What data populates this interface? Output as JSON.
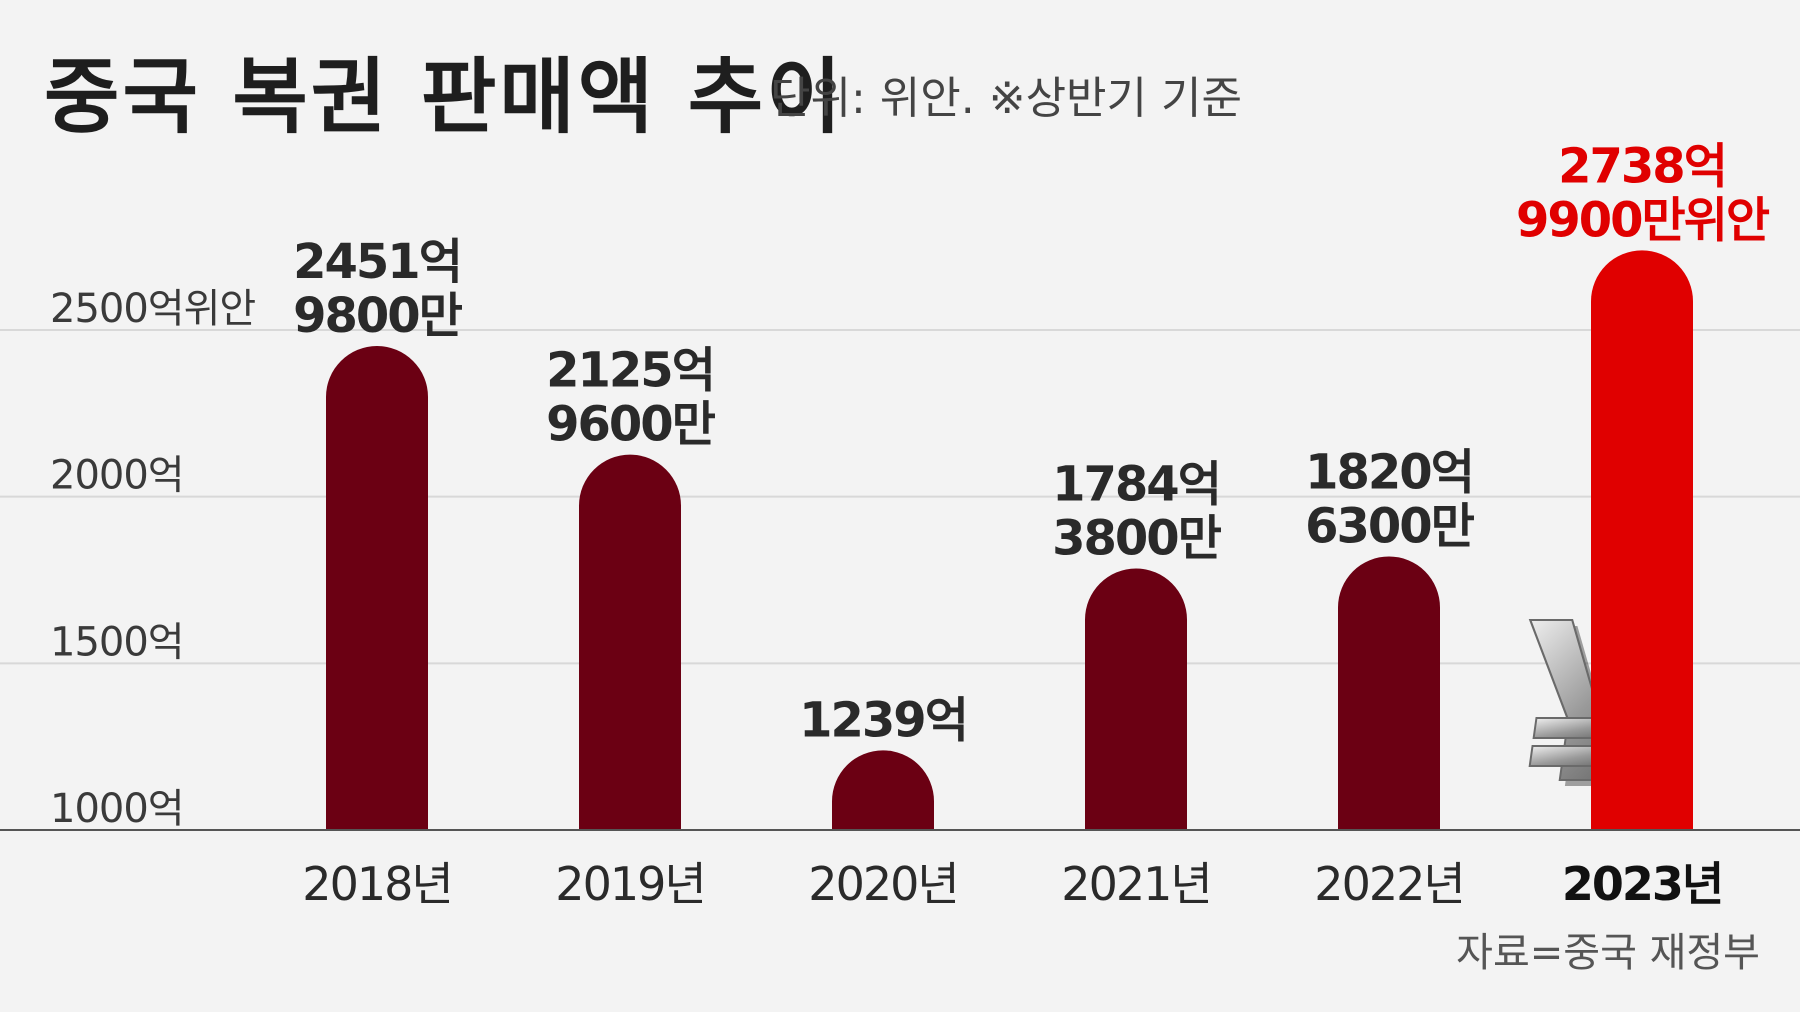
{
  "header": {
    "title": "중국 복권 판매액 추이",
    "unit_note": "단위: 위안. ※상반기 기준"
  },
  "footer": {
    "source": "자료=중국 재정부"
  },
  "colors": {
    "background": "#f3f3f3",
    "bar": "#6b0013",
    "bar_highlight": "#e00000",
    "label_highlight": "#e00000",
    "text": "#2a2a2a",
    "grid": "#d8d8d8",
    "baseline": "#555555"
  },
  "icons": {
    "decoration": "yuan-symbol-icon"
  },
  "chart_data": {
    "type": "bar",
    "categories": [
      "2018년",
      "2019년",
      "2020년",
      "2021년",
      "2022년",
      "2023년"
    ],
    "values": [
      2451.98,
      2125.96,
      1239,
      1784.38,
      1820.63,
      2738.99
    ],
    "data_labels": [
      [
        "2451억",
        "9800만"
      ],
      [
        "2125억",
        "9600만"
      ],
      [
        "1239억"
      ],
      [
        "1784억",
        "3800만"
      ],
      [
        "1820억",
        "6300만"
      ],
      [
        "2738억",
        "9900만위안"
      ]
    ],
    "highlight_index": 5,
    "yticks": [
      {
        "value": 1000,
        "label": "1000억"
      },
      {
        "value": 1500,
        "label": "1500억"
      },
      {
        "value": 2000,
        "label": "2000억"
      },
      {
        "value": 2500,
        "label": "2500억위안"
      }
    ],
    "ylim": [
      1000,
      2800
    ],
    "grid": true,
    "legend": "none"
  }
}
